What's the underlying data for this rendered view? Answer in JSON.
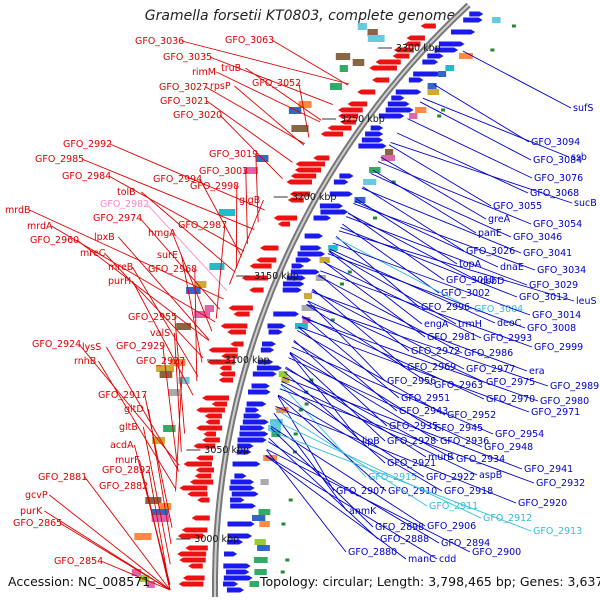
{
  "title": "Gramella forsetii KT0803, complete genome",
  "footer": {
    "accession": "Accession: NC_008571",
    "summary": "Topology: circular; Length: 3,798,465 bp; Genes: 3,637"
  },
  "colors": {
    "left_labels": "#dd0000",
    "right_labels": "#0000cc",
    "right_labels_rna": "#33bbdd",
    "left_labels_rna": "#ff88cc",
    "backbone": "#999999"
  },
  "ticks": [
    "3300 kbp",
    "3250 kbp",
    "3200 kbp",
    "3150 kbp",
    "3100 kbp",
    "3050 kbp",
    "3000 kbp"
  ],
  "left_labels": [
    {
      "text": "GFO_3036",
      "kind": "cds"
    },
    {
      "text": "GFO_3063",
      "kind": "cds"
    },
    {
      "text": "GFO_3035",
      "kind": "cds"
    },
    {
      "text": "rimM",
      "kind": "cds"
    },
    {
      "text": "truB",
      "kind": "cds"
    },
    {
      "text": "GFO_3052",
      "kind": "cds"
    },
    {
      "text": "GFO_3027",
      "kind": "cds"
    },
    {
      "text": "rpsP",
      "kind": "cds"
    },
    {
      "text": "GFO_3021",
      "kind": "cds"
    },
    {
      "text": "GFO_3020",
      "kind": "cds"
    },
    {
      "text": "GFO_2992",
      "kind": "cds"
    },
    {
      "text": "GFO_3019",
      "kind": "cds"
    },
    {
      "text": "GFO_2985",
      "kind": "cds"
    },
    {
      "text": "GFO_3003",
      "kind": "cds"
    },
    {
      "text": "GFO_2984",
      "kind": "cds"
    },
    {
      "text": "GFO_2994",
      "kind": "cds"
    },
    {
      "text": "tolB",
      "kind": "cds"
    },
    {
      "text": "GFO_2998",
      "kind": "cds"
    },
    {
      "text": "glgB",
      "kind": "cds"
    },
    {
      "text": "GFO_2982",
      "kind": "rna"
    },
    {
      "text": "mrdB",
      "kind": "cds"
    },
    {
      "text": "GFO_2974",
      "kind": "cds"
    },
    {
      "text": "GFO_2987",
      "kind": "cds"
    },
    {
      "text": "mrdA",
      "kind": "cds"
    },
    {
      "text": "hmgA",
      "kind": "cds"
    },
    {
      "text": "GFO_2960",
      "kind": "cds"
    },
    {
      "text": "lpxB",
      "kind": "cds"
    },
    {
      "text": "mreC",
      "kind": "cds"
    },
    {
      "text": "surE",
      "kind": "cds"
    },
    {
      "text": "mreB",
      "kind": "cds"
    },
    {
      "text": "GFO_2968",
      "kind": "cds"
    },
    {
      "text": "purH",
      "kind": "cds"
    },
    {
      "text": "GFO_2955",
      "kind": "cds"
    },
    {
      "text": "valS",
      "kind": "cds"
    },
    {
      "text": "GFO_2924",
      "kind": "cds"
    },
    {
      "text": "lysS",
      "kind": "cds"
    },
    {
      "text": "GFO_2929",
      "kind": "cds"
    },
    {
      "text": "rnhB",
      "kind": "cds"
    },
    {
      "text": "GFO_2927",
      "kind": "cds"
    },
    {
      "text": "GFO_2917",
      "kind": "cds"
    },
    {
      "text": "gltD",
      "kind": "cds"
    },
    {
      "text": "gltB",
      "kind": "cds"
    },
    {
      "text": "acdA",
      "kind": "cds"
    },
    {
      "text": "murF",
      "kind": "cds"
    },
    {
      "text": "GFO_2892",
      "kind": "cds"
    },
    {
      "text": "GFO_2881",
      "kind": "cds"
    },
    {
      "text": "GFO_2882",
      "kind": "cds"
    },
    {
      "text": "gcvP",
      "kind": "cds"
    },
    {
      "text": "purK",
      "kind": "cds"
    },
    {
      "text": "GFO_2865",
      "kind": "cds"
    },
    {
      "text": "GFO_2854",
      "kind": "cds"
    }
  ],
  "right_labels": [
    {
      "text": "sufS",
      "kind": "cds"
    },
    {
      "text": "GFO_3094",
      "kind": "cds"
    },
    {
      "text": "GFO_3084",
      "kind": "cds"
    },
    {
      "text": "ssb",
      "kind": "cds"
    },
    {
      "text": "GFO_3076",
      "kind": "cds"
    },
    {
      "text": "GFO_3068",
      "kind": "cds"
    },
    {
      "text": "sucB",
      "kind": "cds"
    },
    {
      "text": "GFO_3055",
      "kind": "cds"
    },
    {
      "text": "greA",
      "kind": "cds"
    },
    {
      "text": "GFO_3054",
      "kind": "cds"
    },
    {
      "text": "panE",
      "kind": "cds"
    },
    {
      "text": "GFO_3046",
      "kind": "cds"
    },
    {
      "text": "GFO_3026",
      "kind": "cds"
    },
    {
      "text": "GFO_3041",
      "kind": "cds"
    },
    {
      "text": "topA",
      "kind": "cds"
    },
    {
      "text": "dnaE",
      "kind": "cds"
    },
    {
      "text": "GFO_3034",
      "kind": "cds"
    },
    {
      "text": "GFO_3010",
      "kind": "cds"
    },
    {
      "text": "dsbD",
      "kind": "cds"
    },
    {
      "text": "GFO_3029",
      "kind": "cds"
    },
    {
      "text": "GFO_3002",
      "kind": "cds"
    },
    {
      "text": "GFO_3013",
      "kind": "cds"
    },
    {
      "text": "leuS",
      "kind": "cds"
    },
    {
      "text": "GFO_2996",
      "kind": "cds"
    },
    {
      "text": "GFO_3004",
      "kind": "rna"
    },
    {
      "text": "GFO_3014",
      "kind": "cds"
    },
    {
      "text": "engA",
      "kind": "cds"
    },
    {
      "text": "trmH",
      "kind": "cds"
    },
    {
      "text": "deoC",
      "kind": "cds"
    },
    {
      "text": "GFO_3008",
      "kind": "cds"
    },
    {
      "text": "GFO_2981",
      "kind": "cds"
    },
    {
      "text": "GFO_2993",
      "kind": "cds"
    },
    {
      "text": "GFO_2999",
      "kind": "cds"
    },
    {
      "text": "GFO_2972",
      "kind": "cds"
    },
    {
      "text": "GFO_2986",
      "kind": "cds"
    },
    {
      "text": "GFO_2969",
      "kind": "cds"
    },
    {
      "text": "GFO_2977",
      "kind": "cds"
    },
    {
      "text": "era",
      "kind": "cds"
    },
    {
      "text": "GFO_2956",
      "kind": "cds"
    },
    {
      "text": "GFO_2963",
      "kind": "cds"
    },
    {
      "text": "GFO_2975",
      "kind": "cds"
    },
    {
      "text": "GFO_2989",
      "kind": "cds"
    },
    {
      "text": "GFO_2951",
      "kind": "cds"
    },
    {
      "text": "GFO_2970",
      "kind": "cds"
    },
    {
      "text": "GFO_2980",
      "kind": "cds"
    },
    {
      "text": "GFO_2943",
      "kind": "cds"
    },
    {
      "text": "GFO_2952",
      "kind": "cds"
    },
    {
      "text": "GFO_2971",
      "kind": "cds"
    },
    {
      "text": "GFO_2935",
      "kind": "cds"
    },
    {
      "text": "GFO_2945",
      "kind": "cds"
    },
    {
      "text": "GFO_2954",
      "kind": "cds"
    },
    {
      "text": "lipB",
      "kind": "cds"
    },
    {
      "text": "GFO_2928",
      "kind": "cds"
    },
    {
      "text": "GFO_2936",
      "kind": "cds"
    },
    {
      "text": "GFO_2948",
      "kind": "cds"
    },
    {
      "text": "murB",
      "kind": "cds"
    },
    {
      "text": "GFO_2934",
      "kind": "cds"
    },
    {
      "text": "GFO_2921",
      "kind": "cds"
    },
    {
      "text": "GFO_2941",
      "kind": "cds"
    },
    {
      "text": "GFO_2915",
      "kind": "rna"
    },
    {
      "text": "GFO_2922",
      "kind": "cds"
    },
    {
      "text": "aspB",
      "kind": "cds"
    },
    {
      "text": "GFO_2932",
      "kind": "cds"
    },
    {
      "text": "GFO_2907",
      "kind": "cds"
    },
    {
      "text": "GFO_2910",
      "kind": "cds"
    },
    {
      "text": "GFO_2918",
      "kind": "cds"
    },
    {
      "text": "GFO_2920",
      "kind": "cds"
    },
    {
      "text": "GFO_2911",
      "kind": "rna"
    },
    {
      "text": "anmK",
      "kind": "cds"
    },
    {
      "text": "GFO_2912",
      "kind": "rna"
    },
    {
      "text": "GFO_2898",
      "kind": "cds"
    },
    {
      "text": "GFO_2906",
      "kind": "cds"
    },
    {
      "text": "GFO_2913",
      "kind": "rna"
    },
    {
      "text": "GFO_2888",
      "kind": "cds"
    },
    {
      "text": "GFO_2894",
      "kind": "cds"
    },
    {
      "text": "GFO_2880",
      "kind": "cds"
    },
    {
      "text": "GFO_2900",
      "kind": "cds"
    },
    {
      "text": "manC",
      "kind": "cds"
    },
    {
      "text": "cdd",
      "kind": "cds"
    }
  ]
}
